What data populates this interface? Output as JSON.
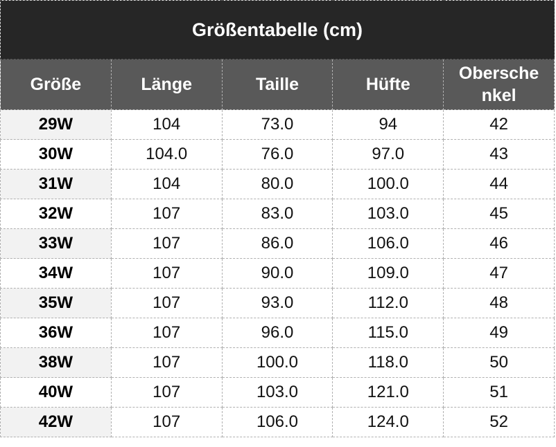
{
  "title": "Größentabelle (cm)",
  "headers": [
    "Größe",
    "Länge",
    "Taille",
    "Hüfte",
    "Oberschenkel"
  ],
  "header_display": [
    "Größe",
    "Länge",
    "Taille",
    "Hüfte",
    "Obersche\nnkel"
  ],
  "rows": [
    [
      "29W",
      "104",
      "73.0",
      "94",
      "42"
    ],
    [
      "30W",
      "104.0",
      "76.0",
      "97.0",
      "43"
    ],
    [
      "31W",
      "104",
      "80.0",
      "100.0",
      "44"
    ],
    [
      "32W",
      "107",
      "83.0",
      "103.0",
      "45"
    ],
    [
      "33W",
      "107",
      "86.0",
      "106.0",
      "46"
    ],
    [
      "34W",
      "107",
      "90.0",
      "109.0",
      "47"
    ],
    [
      "35W",
      "107",
      "93.0",
      "112.0",
      "48"
    ],
    [
      "36W",
      "107",
      "96.0",
      "115.0",
      "49"
    ],
    [
      "38W",
      "107",
      "100.0",
      "118.0",
      "50"
    ],
    [
      "40W",
      "107",
      "103.0",
      "121.0",
      "51"
    ],
    [
      "42W",
      "107",
      "106.0",
      "124.0",
      "52"
    ]
  ],
  "colors": {
    "title_bg": "#262626",
    "header_bg": "#595959",
    "alt_cell_bg": "#f2f2f2"
  }
}
